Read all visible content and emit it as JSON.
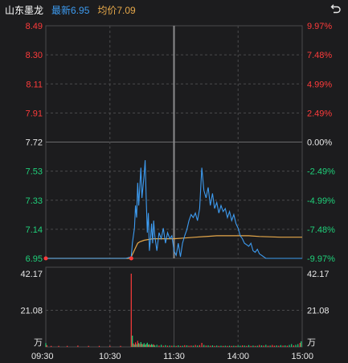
{
  "header": {
    "stock_name": "山东墨龙",
    "latest_label": "最新6.95",
    "avg_label": "均价7.09"
  },
  "chart_data": {
    "type": "line",
    "price_ticks": [
      "8.49",
      "8.30",
      "8.11",
      "7.91",
      "7.72",
      "7.53",
      "7.33",
      "7.14",
      "6.95"
    ],
    "pct_ticks": [
      "9.97%",
      "7.48%",
      "4.99%",
      "2.49%",
      "0.00%",
      "-2.49%",
      "-4.99%",
      "-7.48%",
      "-9.97%"
    ],
    "prev_close": 7.72,
    "ylim": [
      6.95,
      8.49
    ],
    "x_ticks": [
      "09:30",
      "10:30",
      "11:30",
      "14:00",
      "15:00"
    ],
    "volume_ticks": [
      "42.17",
      "21.08"
    ],
    "volume_unit": "万",
    "volume_max": 42.17,
    "colors": {
      "up": "#ff3b3b",
      "down": "#1fd17a",
      "neutral": "#e8e8e8",
      "price_line": "#3d9bf0",
      "avg_line": "#e6a84a",
      "grid": "#4a4a4c",
      "cursor": "#8a8a8c"
    },
    "price_series": [
      [
        0,
        6.95
      ],
      [
        30,
        6.95
      ],
      [
        60,
        6.95
      ],
      [
        75,
        6.95
      ],
      [
        80,
        6.96
      ],
      [
        81,
        7.05
      ],
      [
        83,
        7.15
      ],
      [
        84,
        7.3
      ],
      [
        85,
        7.22
      ],
      [
        86,
        7.45
      ],
      [
        87,
        7.3
      ],
      [
        89,
        7.55
      ],
      [
        90,
        7.35
      ],
      [
        92,
        7.5
      ],
      [
        93,
        7.6
      ],
      [
        94,
        7.35
      ],
      [
        95,
        7.12
      ],
      [
        96,
        7.25
      ],
      [
        97,
        7.0
      ],
      [
        98,
        7.08
      ],
      [
        99,
        7.18
      ],
      [
        100,
        7.05
      ],
      [
        101,
        7.2
      ],
      [
        102,
        7.1
      ],
      [
        104,
        7.0
      ],
      [
        106,
        7.12
      ],
      [
        108,
        7.08
      ],
      [
        110,
        7.15
      ],
      [
        112,
        7.05
      ],
      [
        114,
        7.12
      ],
      [
        116,
        7.08
      ],
      [
        118,
        7.1
      ],
      [
        119,
        7.05
      ],
      [
        120,
        7.0
      ],
      [
        122,
        6.97
      ],
      [
        124,
        7.05
      ],
      [
        126,
        6.96
      ],
      [
        128,
        7.05
      ],
      [
        130,
        7.1
      ],
      [
        132,
        7.14
      ],
      [
        134,
        7.2
      ],
      [
        136,
        7.24
      ],
      [
        138,
        7.22
      ],
      [
        140,
        7.25
      ],
      [
        142,
        7.2
      ],
      [
        144,
        7.28
      ],
      [
        146,
        7.55
      ],
      [
        148,
        7.4
      ],
      [
        150,
        7.35
      ],
      [
        152,
        7.42
      ],
      [
        154,
        7.3
      ],
      [
        156,
        7.38
      ],
      [
        158,
        7.28
      ],
      [
        160,
        7.32
      ],
      [
        162,
        7.25
      ],
      [
        164,
        7.3
      ],
      [
        166,
        7.26
      ],
      [
        168,
        7.28
      ],
      [
        170,
        7.22
      ],
      [
        172,
        7.26
      ],
      [
        174,
        7.2
      ],
      [
        176,
        7.24
      ],
      [
        178,
        7.18
      ],
      [
        180,
        7.15
      ],
      [
        182,
        7.1
      ],
      [
        184,
        7.08
      ],
      [
        186,
        7.05
      ],
      [
        188,
        7.04
      ],
      [
        190,
        7.03
      ],
      [
        192,
        7.05
      ],
      [
        194,
        7.0
      ],
      [
        196,
        6.99
      ],
      [
        198,
        7.01
      ],
      [
        200,
        6.98
      ],
      [
        202,
        6.97
      ],
      [
        204,
        6.96
      ],
      [
        206,
        6.95
      ],
      [
        220,
        6.95
      ],
      [
        240,
        6.95
      ]
    ],
    "avg_series": [
      [
        0,
        6.95
      ],
      [
        60,
        6.95
      ],
      [
        78,
        6.95
      ],
      [
        80,
        6.96
      ],
      [
        82,
        6.99
      ],
      [
        84,
        7.02
      ],
      [
        86,
        7.05
      ],
      [
        88,
        7.06
      ],
      [
        92,
        7.07
      ],
      [
        100,
        7.08
      ],
      [
        120,
        7.08
      ],
      [
        130,
        7.085
      ],
      [
        140,
        7.09
      ],
      [
        160,
        7.1
      ],
      [
        180,
        7.1
      ],
      [
        190,
        7.1
      ],
      [
        200,
        7.095
      ],
      [
        220,
        7.09
      ],
      [
        240,
        7.09
      ]
    ],
    "volume_series": [
      [
        0,
        2.2,
        "down"
      ],
      [
        1,
        1.0,
        "up"
      ],
      [
        5,
        0.6,
        "up"
      ],
      [
        12,
        0.6,
        "up"
      ],
      [
        20,
        0.6,
        "up"
      ],
      [
        30,
        0.8,
        "up"
      ],
      [
        40,
        0.6,
        "up"
      ],
      [
        50,
        0.6,
        "up"
      ],
      [
        60,
        0.6,
        "up"
      ],
      [
        70,
        0.6,
        "up"
      ],
      [
        80,
        42.17,
        "up"
      ],
      [
        81,
        6.5,
        "down"
      ],
      [
        82,
        2.0,
        "up"
      ],
      [
        83,
        1.3,
        "down"
      ],
      [
        84,
        2.6,
        "up"
      ],
      [
        85,
        1.5,
        "down"
      ],
      [
        86,
        3.5,
        "up"
      ],
      [
        87,
        2.2,
        "down"
      ],
      [
        88,
        1.6,
        "up"
      ],
      [
        89,
        2.8,
        "down"
      ],
      [
        90,
        1.7,
        "up"
      ],
      [
        91,
        1.5,
        "down"
      ],
      [
        92,
        2.2,
        "down"
      ],
      [
        93,
        1.2,
        "up"
      ],
      [
        94,
        1.6,
        "down"
      ],
      [
        95,
        2.4,
        "down"
      ],
      [
        96,
        1.3,
        "up"
      ],
      [
        97,
        1.5,
        "down"
      ],
      [
        98,
        1.0,
        "up"
      ],
      [
        99,
        1.6,
        "down"
      ],
      [
        100,
        1.1,
        "down"
      ],
      [
        101,
        1.5,
        "up"
      ],
      [
        102,
        0.9,
        "down"
      ],
      [
        104,
        1.2,
        "down"
      ],
      [
        106,
        0.8,
        "up"
      ],
      [
        108,
        1.2,
        "down"
      ],
      [
        110,
        0.7,
        "up"
      ],
      [
        112,
        1.0,
        "down"
      ],
      [
        114,
        0.7,
        "up"
      ],
      [
        116,
        0.8,
        "down"
      ],
      [
        118,
        0.7,
        "up"
      ],
      [
        120,
        0.8,
        "down"
      ],
      [
        122,
        0.6,
        "up"
      ],
      [
        124,
        0.9,
        "down"
      ],
      [
        126,
        0.6,
        "up"
      ],
      [
        128,
        0.7,
        "down"
      ],
      [
        130,
        1.0,
        "up"
      ],
      [
        132,
        0.9,
        "down"
      ],
      [
        134,
        0.7,
        "up"
      ],
      [
        136,
        0.8,
        "up"
      ],
      [
        138,
        0.7,
        "down"
      ],
      [
        140,
        1.1,
        "up"
      ],
      [
        142,
        0.8,
        "down"
      ],
      [
        144,
        1.0,
        "up"
      ],
      [
        146,
        2.3,
        "up"
      ],
      [
        148,
        1.1,
        "down"
      ],
      [
        150,
        0.8,
        "up"
      ],
      [
        152,
        0.9,
        "down"
      ],
      [
        154,
        0.7,
        "up"
      ],
      [
        156,
        0.9,
        "down"
      ],
      [
        158,
        0.6,
        "up"
      ],
      [
        160,
        0.8,
        "down"
      ],
      [
        162,
        0.6,
        "up"
      ],
      [
        164,
        0.7,
        "down"
      ],
      [
        166,
        0.6,
        "up"
      ],
      [
        168,
        0.7,
        "down"
      ],
      [
        170,
        0.6,
        "up"
      ],
      [
        172,
        0.7,
        "down"
      ],
      [
        174,
        0.6,
        "up"
      ],
      [
        176,
        0.7,
        "down"
      ],
      [
        178,
        0.6,
        "up"
      ],
      [
        180,
        0.8,
        "down"
      ],
      [
        182,
        0.7,
        "down"
      ],
      [
        184,
        0.9,
        "up"
      ],
      [
        186,
        0.8,
        "down"
      ],
      [
        188,
        0.6,
        "up"
      ],
      [
        190,
        1.0,
        "down"
      ],
      [
        192,
        0.6,
        "up"
      ],
      [
        194,
        0.8,
        "down"
      ],
      [
        196,
        0.6,
        "up"
      ],
      [
        198,
        0.7,
        "down"
      ],
      [
        200,
        1.1,
        "up"
      ],
      [
        202,
        0.9,
        "down"
      ],
      [
        204,
        0.8,
        "up"
      ],
      [
        206,
        1.2,
        "down"
      ],
      [
        208,
        0.7,
        "up"
      ],
      [
        210,
        0.8,
        "down"
      ],
      [
        212,
        1.1,
        "up"
      ],
      [
        214,
        0.7,
        "up"
      ],
      [
        216,
        0.9,
        "down"
      ],
      [
        218,
        0.7,
        "up"
      ],
      [
        220,
        1.0,
        "down"
      ],
      [
        222,
        0.8,
        "up"
      ],
      [
        224,
        0.9,
        "down"
      ],
      [
        226,
        0.7,
        "up"
      ],
      [
        228,
        1.1,
        "down"
      ],
      [
        230,
        1.6,
        "down"
      ],
      [
        232,
        0.9,
        "up"
      ],
      [
        234,
        1.2,
        "down"
      ],
      [
        236,
        1.6,
        "down"
      ],
      [
        238,
        2.3,
        "up"
      ],
      [
        239,
        3.2,
        "down"
      ]
    ],
    "cursor_minute": 120
  }
}
